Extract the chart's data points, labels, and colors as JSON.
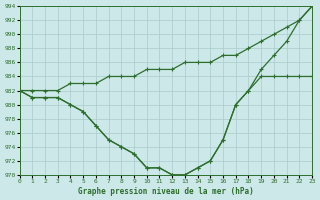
{
  "title": "Graphe pression niveau de la mer (hPa)",
  "background_color": "#cce8e8",
  "grid_color": "#aacccc",
  "line_color": "#2d6e2d",
  "xlim": [
    0,
    23
  ],
  "ylim": [
    970,
    994
  ],
  "yticks": [
    970,
    972,
    974,
    976,
    978,
    980,
    982,
    984,
    986,
    988,
    990,
    992,
    994
  ],
  "xticks": [
    0,
    1,
    2,
    3,
    4,
    5,
    6,
    7,
    8,
    9,
    10,
    11,
    12,
    13,
    14,
    15,
    16,
    17,
    18,
    19,
    20,
    21,
    22,
    23
  ],
  "hours": [
    0,
    1,
    2,
    3,
    4,
    5,
    6,
    7,
    8,
    9,
    10,
    11,
    12,
    13,
    14,
    15,
    16,
    17,
    18,
    19,
    20,
    21,
    22,
    23
  ],
  "line1": [
    982,
    982,
    982,
    982,
    983,
    983,
    983,
    984,
    984,
    984,
    985,
    985,
    985,
    986,
    986,
    986,
    987,
    987,
    988,
    989,
    990,
    991,
    992,
    994
  ],
  "line2": [
    982,
    981,
    981,
    981,
    980,
    979,
    977,
    975,
    974,
    973,
    971,
    971,
    970,
    970,
    971,
    972,
    975,
    980,
    982,
    984,
    984,
    984,
    984,
    984
  ],
  "line3": [
    982,
    981,
    981,
    981,
    980,
    979,
    977,
    975,
    974,
    973,
    971,
    971,
    970,
    970,
    971,
    972,
    975,
    980,
    982,
    985,
    987,
    989,
    992,
    994
  ]
}
